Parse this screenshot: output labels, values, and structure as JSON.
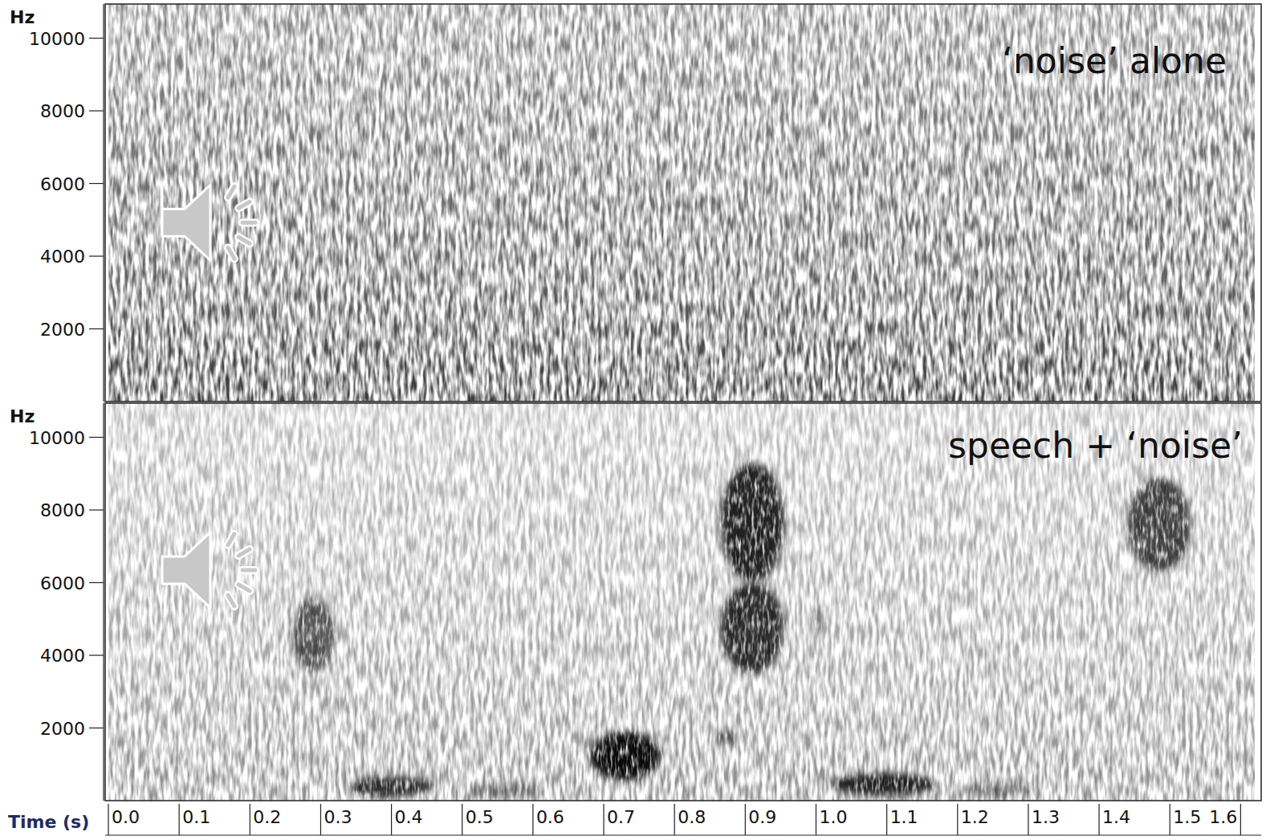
{
  "chart_data": [
    {
      "type": "spectrogram",
      "title": "‘noise’ alone",
      "ylabel": "Hz",
      "color": "#3a3a3a",
      "xlim": [
        0,
        1.62
      ],
      "ylim": [
        0,
        10940
      ],
      "yticks": [
        2000,
        4000,
        6000,
        8000,
        10000
      ],
      "tick_labels": "y"
    },
    {
      "type": "spectrogram",
      "title": "speech + ‘noise’",
      "ylabel": "Hz",
      "xlabel": "Time (s)",
      "color": "#8c8c8c",
      "xlim": [
        0,
        1.62
      ],
      "ylim": [
        0,
        10940
      ],
      "yticks": [
        2000,
        4000,
        6000,
        8000,
        10000
      ],
      "xticks": [
        {
          "value": 0,
          "label": "0.0"
        },
        0.1,
        0.2,
        0.3,
        0.4,
        0.5,
        0.6,
        0.7,
        0.8,
        0.9,
        {
          "value": 1,
          "label": "1.0"
        },
        1.1,
        1.2,
        1.3,
        1.4,
        1.5,
        1.6
      ],
      "tick_labels": true,
      "regions": [
        {
          "t0": 0.26,
          "t1": 0.32,
          "f0": 3500,
          "f1": 5600,
          "level": 0.6
        },
        {
          "t0": 0.34,
          "t1": 0.46,
          "f0": 100,
          "f1": 650,
          "level": 0.8
        },
        {
          "t0": 0.51,
          "t1": 0.61,
          "f0": 100,
          "f1": 500,
          "level": 0.4
        },
        {
          "t0": 0.68,
          "t1": 0.78,
          "f0": 550,
          "f1": 1900,
          "level": 0.95
        },
        {
          "t0": 0.855,
          "t1": 0.89,
          "f0": 1550,
          "f1": 1950,
          "level": 0.5
        },
        {
          "t0": 0.865,
          "t1": 0.955,
          "f0": 3500,
          "f1": 6000,
          "level": 0.8
        },
        {
          "t0": 0.865,
          "t1": 0.955,
          "f0": 6000,
          "f1": 9300,
          "level": 0.85
        },
        {
          "t0": 0.995,
          "t1": 1.015,
          "f0": 4500,
          "f1": 5300,
          "level": 0.35
        },
        {
          "t0": 1.02,
          "t1": 1.17,
          "f0": 150,
          "f1": 750,
          "level": 0.85
        },
        {
          "t0": 1.21,
          "t1": 1.31,
          "f0": 100,
          "f1": 500,
          "level": 0.4
        },
        {
          "t0": 1.44,
          "t1": 1.53,
          "f0": 6300,
          "f1": 8900,
          "level": 0.7
        }
      ]
    }
  ]
}
